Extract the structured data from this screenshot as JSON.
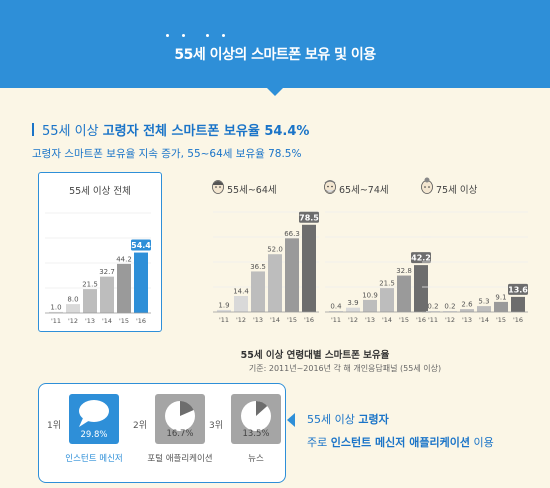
{
  "banner": {
    "title": "55세 이상의 스마트폰 보유 및 이용"
  },
  "headline": {
    "prefix": "55세 이상 ",
    "emphasis": "고령자 전체 스마트폰 보유율",
    "value": " 54.4%",
    "sub": "고령자 스마트폰 보유율 지속 증가, 55~64세 보유율 78.5%"
  },
  "colors": {
    "accent": "#2e8fd8",
    "bar_light": "#d9d9d9",
    "bar_mid": "#bdbdbd",
    "bar_dark": "#9a9a9a",
    "bar_final_gray": "#6d6d6d"
  },
  "chart_data": [
    {
      "type": "bar",
      "title": "55세 이상 전체",
      "categories": [
        "'11",
        "'12",
        "'13",
        "'14",
        "'15",
        "'16"
      ],
      "values": [
        1.0,
        8.0,
        21.5,
        32.7,
        44.2,
        54.4
      ],
      "highlight": "blue",
      "ylim": [
        0,
        90
      ]
    },
    {
      "type": "bar",
      "title": "55세~64세",
      "icon": "elder-face-icon",
      "categories": [
        "'11",
        "'12",
        "'13",
        "'14",
        "'15",
        "'16"
      ],
      "values": [
        1.9,
        14.4,
        36.5,
        52.0,
        66.3,
        78.5
      ],
      "highlight": "dark",
      "ylim": [
        0,
        90
      ]
    },
    {
      "type": "bar",
      "title": "65세~74세",
      "icon": "grandfather-face-icon",
      "categories": [
        "'11",
        "'12",
        "'13",
        "'14",
        "'15",
        "'16"
      ],
      "values": [
        0.4,
        3.9,
        10.9,
        21.5,
        32.8,
        42.2
      ],
      "highlight": "dark",
      "ylim": [
        0,
        90
      ]
    },
    {
      "type": "bar",
      "title": "75세 이상",
      "icon": "grandmother-face-icon",
      "categories": [
        "'11",
        "'12",
        "'13",
        "'14",
        "'15",
        "'16"
      ],
      "values": [
        0.2,
        0.2,
        2.6,
        5.3,
        9.1,
        13.6
      ],
      "highlight": "dark",
      "ylim": [
        0,
        90
      ]
    }
  ],
  "caption": {
    "title": "55세 이상 연령대별 스마트폰 보유율",
    "source": "기준: 2011년~2016년 각 해 개인응답패널 (55세 이상)"
  },
  "ranking": {
    "items": [
      {
        "rank": "1위",
        "label": "인스턴트 메신저",
        "value": "29.8%",
        "icon": "speech-bubble-icon",
        "highlight": true
      },
      {
        "rank": "2위",
        "label": "포털 애플리케이션",
        "value": "16.7%",
        "icon": "pie-icon",
        "highlight": false
      },
      {
        "rank": "3위",
        "label": "뉴스",
        "value": "13.5%",
        "icon": "pie-icon",
        "highlight": false
      }
    ]
  },
  "summary": {
    "line1_prefix": "55세 이상 ",
    "line1_bold": "고령자",
    "line2_prefix": "주로 ",
    "line2_bold": "인스턴트 메신저 애플리케이션",
    "line2_suffix": " 이용"
  }
}
